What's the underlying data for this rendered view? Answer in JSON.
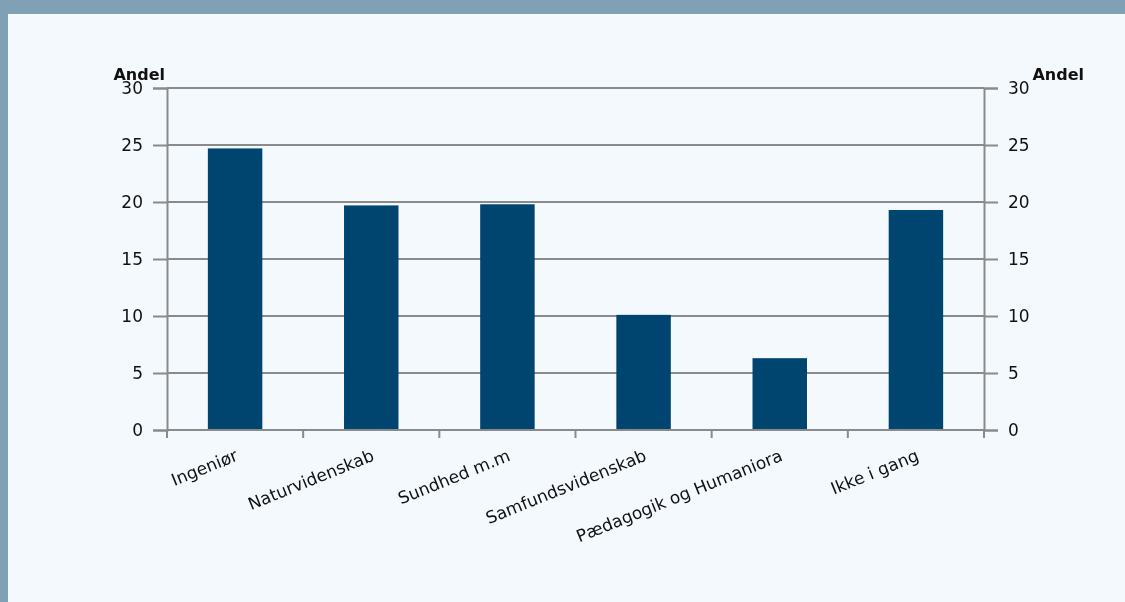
{
  "chart_data": {
    "type": "bar",
    "categories": [
      "Ingeniør",
      "Naturvidenskab",
      "Sundhed m.m",
      "Samfundsvidenskab",
      "Pædagogik og Humaniora",
      "Ikke i gang"
    ],
    "values": [
      24.7,
      19.7,
      19.8,
      10.1,
      6.3,
      19.3
    ],
    "color": "#004570",
    "ylabel": "Andel",
    "y2label": "Andel",
    "ylim": [
      0,
      30
    ],
    "yticks": [
      0,
      5,
      10,
      15,
      20,
      25,
      30
    ],
    "y2lim": [
      0,
      30
    ],
    "y2ticks": [
      0,
      5,
      10,
      15,
      20,
      25,
      30
    ],
    "grid": "y"
  }
}
